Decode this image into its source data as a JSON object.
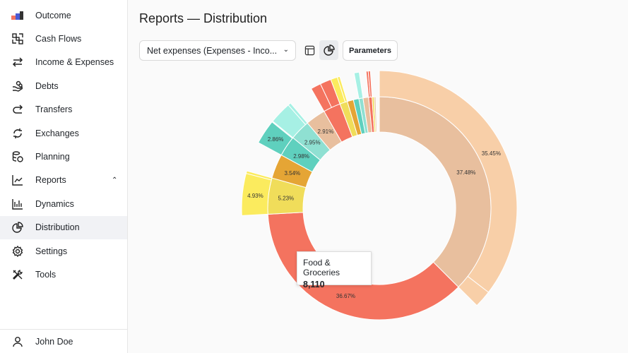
{
  "sidebar": {
    "items": [
      {
        "label": "Outcome",
        "icon": "outcome-logo-icon"
      },
      {
        "label": "Cash Flows",
        "icon": "cash-flows-icon"
      },
      {
        "label": "Income & Expenses",
        "icon": "arrows-left-right-icon"
      },
      {
        "label": "Debts",
        "icon": "hand-coins-icon"
      },
      {
        "label": "Transfers",
        "icon": "redo-arrow-icon"
      },
      {
        "label": "Exchanges",
        "icon": "refresh-icon"
      },
      {
        "label": "Planning",
        "icon": "coins-stack-icon"
      },
      {
        "label": "Reports",
        "icon": "line-chart-icon",
        "expanded": true
      },
      {
        "label": "Dynamics",
        "icon": "bar-chart-icon"
      },
      {
        "label": "Distribution",
        "icon": "pie-chart-icon",
        "active": true
      },
      {
        "label": "Settings",
        "icon": "gear-icon"
      },
      {
        "label": "Tools",
        "icon": "tools-icon"
      }
    ],
    "user": "John Doe"
  },
  "header": {
    "title": "Reports — Distribution"
  },
  "toolbar": {
    "select_value": "Net expenses (Expenses - Inco...",
    "parameters_label": "Parameters",
    "view": "chart"
  },
  "tooltip": {
    "name": "Food & Groceries",
    "value": "8,110"
  },
  "chart_data": {
    "type": "sunburst",
    "inner": [
      {
        "value": 37.48,
        "color": "#e8bf9e",
        "label": "37.48%"
      },
      {
        "value": 36.67,
        "color": "#f4735f",
        "label": "36.67%"
      },
      {
        "value": 5.23,
        "color": "#f0dd5a",
        "label": "5.23%"
      },
      {
        "value": 3.54,
        "color": "#e5a535",
        "label": "3.54%"
      },
      {
        "value": 2.98,
        "color": "#5fd0be",
        "label": "2.98%"
      },
      {
        "value": 2.95,
        "color": "#8fe0d2",
        "label": "2.95%"
      },
      {
        "value": 2.91,
        "color": "#e8bf9e",
        "label": "2.91%"
      },
      {
        "value": 2.5,
        "color": "#f4735f",
        "label": ""
      },
      {
        "value": 1.1,
        "color": "#f0dd5a",
        "label": ""
      },
      {
        "value": 0.9,
        "color": "#e5a535",
        "label": ""
      },
      {
        "value": 0.8,
        "color": "#5fd0be",
        "label": ""
      },
      {
        "value": 0.6,
        "color": "#8fe0d2",
        "label": ""
      },
      {
        "value": 0.8,
        "color": "#e8bf9e",
        "label": ""
      },
      {
        "value": 0.5,
        "color": "#f4735f",
        "label": ""
      },
      {
        "value": 0.3,
        "color": "#f0dd5a",
        "label": ""
      },
      {
        "value": 0.23,
        "color": "#e8bf9e",
        "label": ""
      }
    ],
    "outer": [
      {
        "parent": 0,
        "value": 35.45,
        "color": "#f8cfa8",
        "label": "35.45%"
      },
      {
        "parent": 0,
        "value": 2.03,
        "color": "#f8cfa8",
        "label": ""
      },
      {
        "parent": 2,
        "value": 4.93,
        "color": "#fbeb5e",
        "label": "4.93%"
      },
      {
        "parent": 2,
        "value": 0.3,
        "color": "#fbeb5e",
        "label": ""
      },
      {
        "parent": 4,
        "value": 2.86,
        "color": "#5fd0be",
        "label": "2.86%"
      },
      {
        "parent": 5,
        "value": 2.6,
        "color": "#a6f0e4",
        "label": ""
      },
      {
        "parent": 5,
        "value": 0.35,
        "color": "#a6f0e4",
        "label": ""
      },
      {
        "parent": 7,
        "value": 1.2,
        "color": "#f4735f",
        "label": ""
      },
      {
        "parent": 7,
        "value": 1.3,
        "color": "#f4735f",
        "label": ""
      },
      {
        "parent": 8,
        "value": 0.8,
        "color": "#fbeb5e",
        "label": ""
      },
      {
        "parent": 8,
        "value": 0.3,
        "color": "#fbeb5e",
        "label": ""
      },
      {
        "parent": 11,
        "value": 0.6,
        "color": "#a6f0e4",
        "label": ""
      },
      {
        "parent": 13,
        "value": 0.25,
        "color": "#f4735f",
        "label": ""
      },
      {
        "parent": 13,
        "value": 0.25,
        "color": "#f4735f",
        "label": ""
      }
    ]
  }
}
